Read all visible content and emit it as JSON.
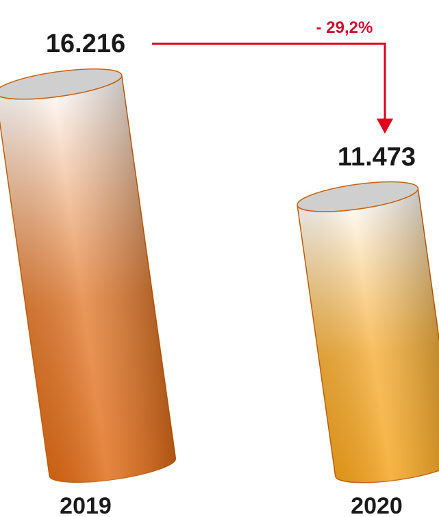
{
  "chart_data": {
    "type": "bar",
    "categories": [
      "2019",
      "2020"
    ],
    "values": [
      16216,
      11473
    ],
    "value_labels": [
      "16.216",
      "11.473"
    ],
    "change_label": "- 29,2%",
    "title": "",
    "xlabel": "",
    "ylabel": "",
    "ylim": [
      0,
      16216
    ],
    "grid": false,
    "colors": {
      "bar_2019_top": "#ffffff",
      "bar_2019_bottom": "#e06a14",
      "bar_2020_top": "#ffffff",
      "bar_2020_bottom": "#f5a31a",
      "bar_edge": "#c8620e",
      "cap_fill": "#cfcfcf",
      "arrow": "#e0001b",
      "change_text": "#c8102e"
    }
  }
}
